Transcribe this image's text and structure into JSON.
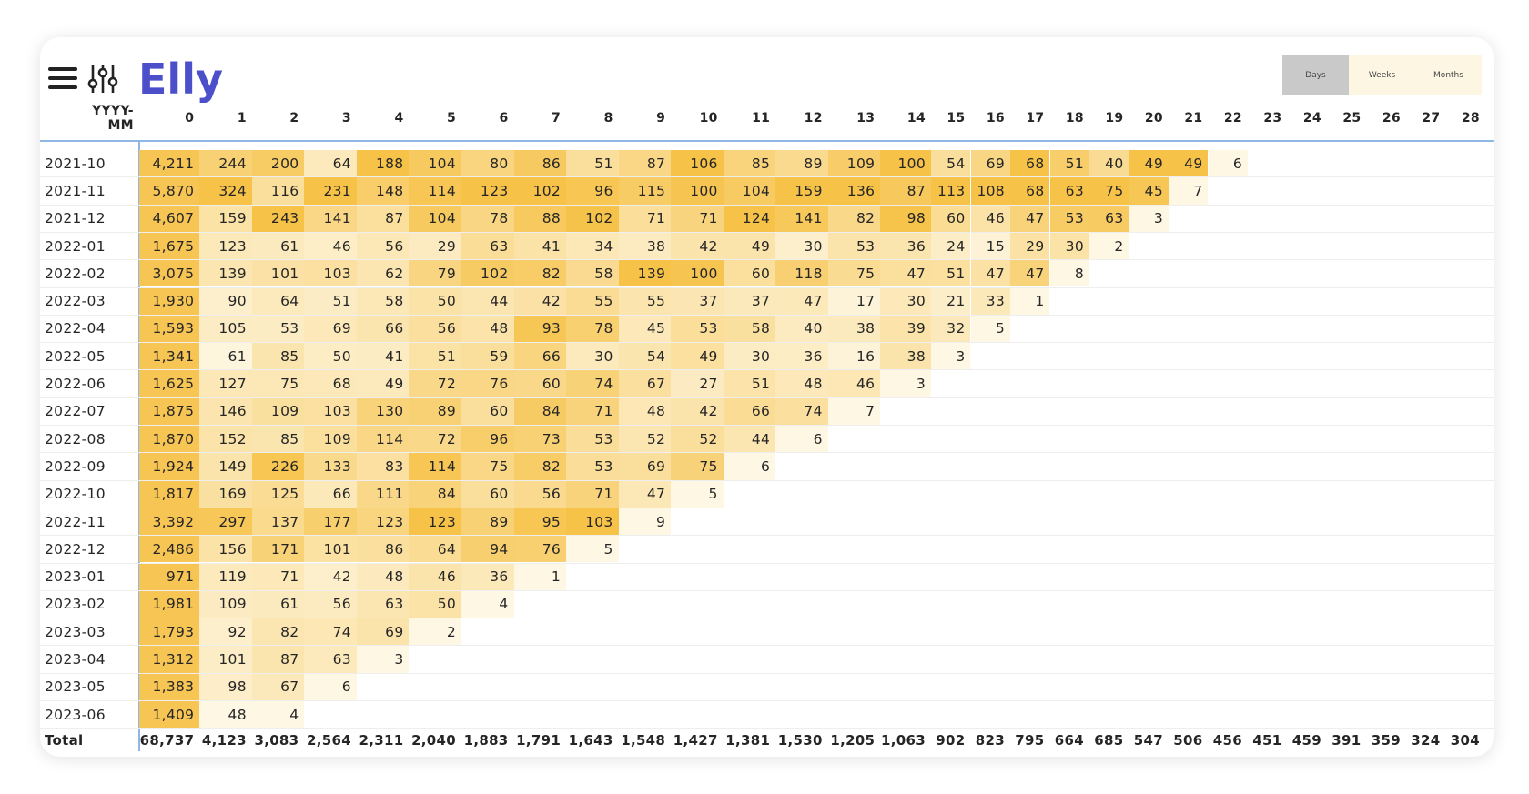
{
  "header": {
    "title": "Elly",
    "buttons": [
      "Days",
      "Weeks",
      "Months"
    ]
  },
  "table": {
    "columns": [
      "YYYY-MM",
      "0",
      "1",
      "2",
      "3",
      "4",
      "5",
      "6",
      "7",
      "8",
      "9",
      "10",
      "11",
      "12",
      "13",
      "14",
      "15",
      "16",
      "17",
      "18",
      "19",
      "20",
      "21",
      "22",
      "23",
      "24",
      "25",
      "26",
      "27",
      "28"
    ],
    "rows": [
      [
        "2021-10",
        "4,211",
        "244",
        "200",
        "64",
        "188",
        "104",
        "80",
        "86",
        "51",
        "87",
        "106",
        "85",
        "89",
        "109",
        "100",
        "54",
        "69",
        "68",
        "51",
        "40",
        "49",
        "49",
        "6"
      ],
      [
        "2021-11",
        "5,870",
        "324",
        "116",
        "231",
        "148",
        "114",
        "123",
        "102",
        "96",
        "115",
        "100",
        "104",
        "159",
        "136",
        "87",
        "113",
        "108",
        "68",
        "63",
        "75",
        "45",
        "7"
      ],
      [
        "2021-12",
        "4,607",
        "159",
        "243",
        "141",
        "87",
        "104",
        "78",
        "88",
        "102",
        "71",
        "71",
        "124",
        "141",
        "82",
        "98",
        "60",
        "46",
        "47",
        "53",
        "63",
        "3"
      ],
      [
        "2022-01",
        "1,675",
        "123",
        "61",
        "46",
        "56",
        "29",
        "63",
        "41",
        "34",
        "38",
        "42",
        "49",
        "30",
        "53",
        "36",
        "24",
        "15",
        "29",
        "30",
        "2"
      ],
      [
        "2022-02",
        "3,075",
        "139",
        "101",
        "103",
        "62",
        "79",
        "102",
        "82",
        "58",
        "139",
        "100",
        "60",
        "118",
        "75",
        "47",
        "51",
        "47",
        "47",
        "8"
      ],
      [
        "2022-03",
        "1,930",
        "90",
        "64",
        "51",
        "58",
        "50",
        "44",
        "42",
        "55",
        "55",
        "37",
        "37",
        "47",
        "17",
        "30",
        "21",
        "33",
        "1"
      ],
      [
        "2022-04",
        "1,593",
        "105",
        "53",
        "69",
        "66",
        "56",
        "48",
        "93",
        "78",
        "45",
        "53",
        "58",
        "40",
        "38",
        "39",
        "32",
        "5"
      ],
      [
        "2022-05",
        "1,341",
        "61",
        "85",
        "50",
        "41",
        "51",
        "59",
        "66",
        "30",
        "54",
        "49",
        "30",
        "36",
        "16",
        "38",
        "3"
      ],
      [
        "2022-06",
        "1,625",
        "127",
        "75",
        "68",
        "49",
        "72",
        "76",
        "60",
        "74",
        "67",
        "27",
        "51",
        "48",
        "46",
        "3"
      ],
      [
        "2022-07",
        "1,875",
        "146",
        "109",
        "103",
        "130",
        "89",
        "60",
        "84",
        "71",
        "48",
        "42",
        "66",
        "74",
        "7"
      ],
      [
        "2022-08",
        "1,870",
        "152",
        "85",
        "109",
        "114",
        "72",
        "96",
        "73",
        "53",
        "52",
        "52",
        "44",
        "6"
      ],
      [
        "2022-09",
        "1,924",
        "149",
        "226",
        "133",
        "83",
        "114",
        "75",
        "82",
        "53",
        "69",
        "75",
        "6"
      ],
      [
        "2022-10",
        "1,817",
        "169",
        "125",
        "66",
        "111",
        "84",
        "60",
        "56",
        "71",
        "47",
        "5"
      ],
      [
        "2022-11",
        "3,392",
        "297",
        "137",
        "177",
        "123",
        "123",
        "89",
        "95",
        "103",
        "9"
      ],
      [
        "2022-12",
        "2,486",
        "156",
        "171",
        "101",
        "86",
        "64",
        "94",
        "76",
        "5"
      ],
      [
        "2023-01",
        "971",
        "119",
        "71",
        "42",
        "48",
        "46",
        "36",
        "1"
      ],
      [
        "2023-02",
        "1,981",
        "109",
        "61",
        "56",
        "63",
        "50",
        "4"
      ],
      [
        "2023-03",
        "1,793",
        "92",
        "82",
        "74",
        "69",
        "2"
      ],
      [
        "2023-04",
        "1,312",
        "101",
        "87",
        "63",
        "3"
      ],
      [
        "2023-05",
        "1,383",
        "98",
        "67",
        "6"
      ],
      [
        "2023-06",
        "1,409",
        "48",
        "4"
      ]
    ],
    "total": [
      "Total",
      "68,737",
      "4,123",
      "3,083",
      "2,564",
      "2,311",
      "2,040",
      "1,883",
      "1,791",
      "1,643",
      "1,548",
      "1,427",
      "1,381",
      "1,530",
      "1,205",
      "1,063",
      "902",
      "823",
      "795",
      "664",
      "685",
      "547",
      "506",
      "456",
      "451",
      "459",
      "391",
      "359",
      "324",
      "304"
    ]
  }
}
